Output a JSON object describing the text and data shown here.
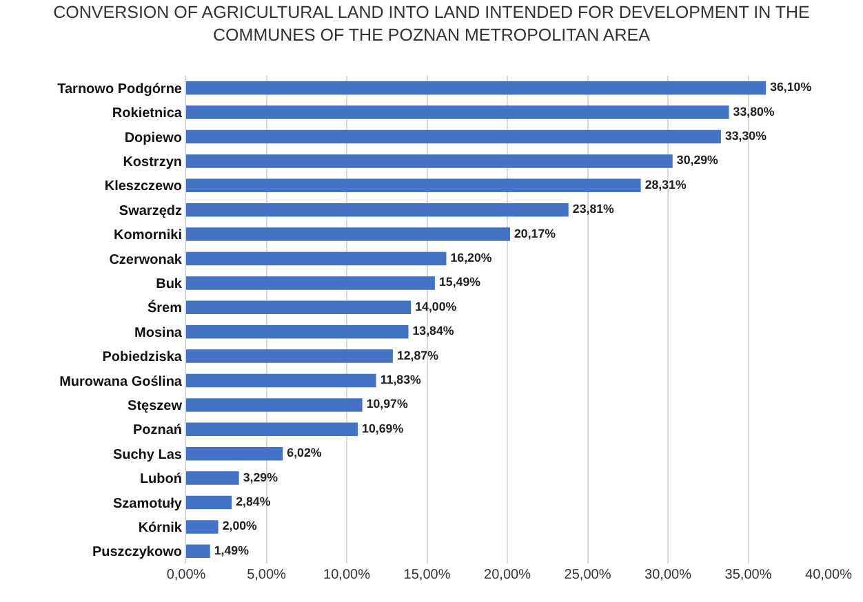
{
  "chart_data": {
    "type": "bar",
    "orientation": "horizontal",
    "title": "CONVERSION OF AGRICULTURAL LAND INTO LAND INTENDED FOR DEVELOPMENT IN THE COMMUNES OF THE POZNAN METROPOLITAN AREA",
    "categories": [
      "Tarnowo Podgórne",
      "Rokietnica",
      "Dopiewo",
      "Kostrzyn",
      "Kleszczewo",
      "Swarzędz",
      "Komorniki",
      "Czerwonak",
      "Buk",
      "Śrem",
      "Mosina",
      "Pobiedziska",
      "Murowana Goślina",
      "Stęszew",
      "Poznań",
      "Suchy Las",
      "Luboń",
      "Szamotuły",
      "Kórnik",
      "Puszczykowo"
    ],
    "values": [
      36.1,
      33.8,
      33.3,
      30.29,
      28.31,
      23.81,
      20.17,
      16.2,
      15.49,
      14.0,
      13.84,
      12.87,
      11.83,
      10.97,
      10.69,
      6.02,
      3.29,
      2.84,
      2.0,
      1.49
    ],
    "value_labels": [
      "36,10%",
      "33,80%",
      "33,30%",
      "30,29%",
      "28,31%",
      "23,81%",
      "20,17%",
      "16,20%",
      "15,49%",
      "14,00%",
      "13,84%",
      "12,87%",
      "11,83%",
      "10,97%",
      "10,69%",
      "6,02%",
      "3,29%",
      "2,84%",
      "2,00%",
      "1,49%"
    ],
    "color": "#4472c4",
    "xlim": [
      0,
      40
    ],
    "xticks": [
      {
        "value": 0,
        "label": "0,00%"
      },
      {
        "value": 5,
        "label": "5,00%"
      },
      {
        "value": 10,
        "label": "10,00%"
      },
      {
        "value": 15,
        "label": "15,00%"
      },
      {
        "value": 20,
        "label": "20,00%"
      },
      {
        "value": 25,
        "label": "25,00%"
      },
      {
        "value": 30,
        "label": "30,00%"
      },
      {
        "value": 35,
        "label": "35,00%"
      },
      {
        "value": 40,
        "label": "40,00%"
      }
    ],
    "grid": "x"
  }
}
